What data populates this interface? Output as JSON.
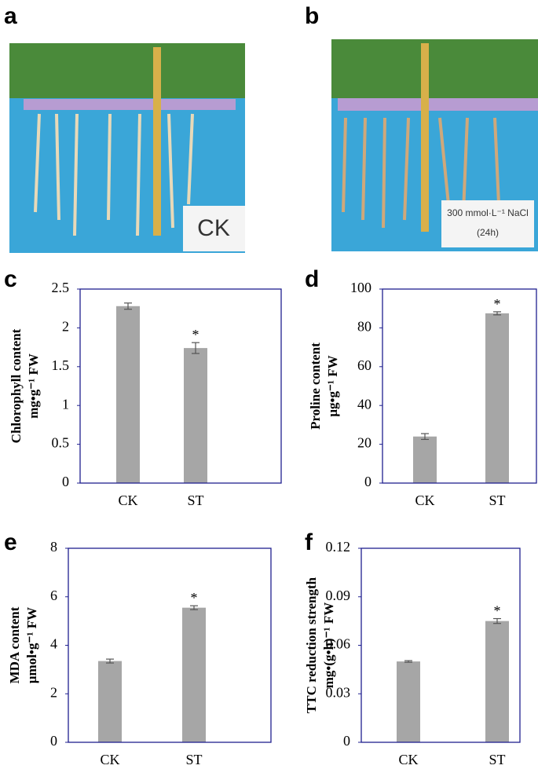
{
  "photos": [
    {
      "label": "a",
      "sign": "CK"
    },
    {
      "label": "b",
      "sign": "300 mmol·L⁻¹ NaCl",
      "sign2": "(24h)"
    }
  ],
  "chart_data": [
    {
      "type": "bar",
      "label": "c",
      "ylabel": [
        "Chlorophyll content",
        "mg•g⁻¹ FW"
      ],
      "categories": [
        "CK",
        "ST"
      ],
      "values": [
        2.28,
        1.74
      ],
      "errors": [
        0.04,
        0.07
      ],
      "significance": [
        null,
        "*"
      ],
      "color": "#a6a6a6",
      "ylim": [
        0,
        2.5
      ],
      "yticks": [
        0,
        0.5,
        1,
        1.5,
        2,
        2.5
      ]
    },
    {
      "type": "bar",
      "label": "d",
      "ylabel": [
        "Proline content",
        "μg•g⁻¹ FW"
      ],
      "categories": [
        "CK",
        "ST"
      ],
      "values": [
        24,
        87.5
      ],
      "errors": [
        1.5,
        0.8
      ],
      "significance": [
        null,
        "*"
      ],
      "color": "#a6a6a6",
      "ylim": [
        0,
        100
      ],
      "yticks": [
        0,
        20,
        40,
        60,
        80,
        100
      ]
    },
    {
      "type": "bar",
      "label": "e",
      "ylabel": [
        "MDA content",
        "μmol•g⁻¹ FW"
      ],
      "categories": [
        "CK",
        "ST"
      ],
      "values": [
        3.35,
        5.55
      ],
      "errors": [
        0.08,
        0.08
      ],
      "significance": [
        null,
        "*"
      ],
      "color": "#a6a6a6",
      "ylim": [
        0,
        8
      ],
      "yticks": [
        0,
        2,
        4,
        6,
        8
      ]
    },
    {
      "type": "bar",
      "label": "f",
      "ylabel": [
        "TTC reduction strength",
        "mg•(g•h)⁻¹ FW"
      ],
      "categories": [
        "CK",
        "ST"
      ],
      "values": [
        0.05,
        0.075
      ],
      "errors": [
        0.0005,
        0.0015
      ],
      "significance": [
        null,
        "*"
      ],
      "color": "#a6a6a6",
      "ylim": [
        0,
        0.12
      ],
      "yticks": [
        0,
        0.03,
        0.06,
        0.09,
        0.12
      ]
    }
  ]
}
